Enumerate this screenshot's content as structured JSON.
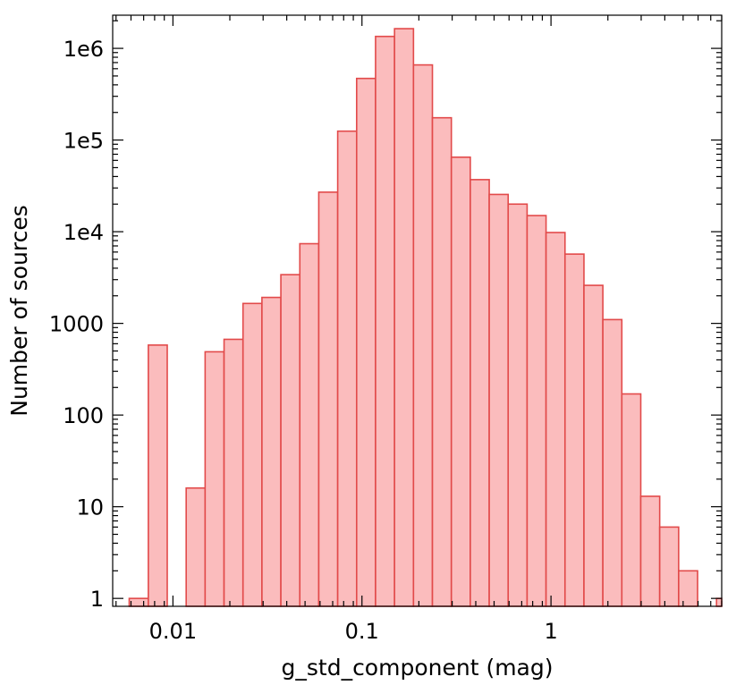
{
  "chart_data": {
    "type": "bar",
    "subtype": "histogram",
    "title": "",
    "xlabel": "g_std_component (mag)",
    "ylabel": "Number of sources",
    "x_scale": "log",
    "y_scale": "log",
    "xlim": [
      0.0048,
      8.0
    ],
    "ylim": [
      0.82,
      2300000
    ],
    "x_ticks": [
      {
        "value": 0.01,
        "label": "0.01"
      },
      {
        "value": 0.1,
        "label": "0.1"
      },
      {
        "value": 1,
        "label": "1"
      }
    ],
    "y_ticks": [
      {
        "value": 1,
        "label": "1"
      },
      {
        "value": 10,
        "label": "10"
      },
      {
        "value": 100,
        "label": "100"
      },
      {
        "value": 1000,
        "label": "1000"
      },
      {
        "value": 10000,
        "label": "1e4"
      },
      {
        "value": 100000,
        "label": "1e5"
      },
      {
        "value": 1000000,
        "label": "1e6"
      }
    ],
    "grid": false,
    "bar_fill": "#fbbcbd",
    "bar_stroke": "#e24a4a",
    "bins": [
      {
        "x0": 0.00587,
        "x1": 0.00741,
        "count": 1
      },
      {
        "x0": 0.00741,
        "x1": 0.00933,
        "count": 580
      },
      {
        "x0": 0.01175,
        "x1": 0.0148,
        "count": 16
      },
      {
        "x0": 0.0148,
        "x1": 0.01864,
        "count": 490
      },
      {
        "x0": 0.01864,
        "x1": 0.02348,
        "count": 670
      },
      {
        "x0": 0.02348,
        "x1": 0.02957,
        "count": 1650
      },
      {
        "x0": 0.02957,
        "x1": 0.03724,
        "count": 1920
      },
      {
        "x0": 0.03724,
        "x1": 0.04691,
        "count": 3400
      },
      {
        "x0": 0.04691,
        "x1": 0.05908,
        "count": 7400
      },
      {
        "x0": 0.05908,
        "x1": 0.07441,
        "count": 27000
      },
      {
        "x0": 0.07441,
        "x1": 0.09372,
        "count": 125000
      },
      {
        "x0": 0.09372,
        "x1": 0.118,
        "count": 470000
      },
      {
        "x0": 0.118,
        "x1": 0.1487,
        "count": 1350000
      },
      {
        "x0": 0.1487,
        "x1": 0.1873,
        "count": 1640000
      },
      {
        "x0": 0.1873,
        "x1": 0.2359,
        "count": 660000
      },
      {
        "x0": 0.2359,
        "x1": 0.2971,
        "count": 175000
      },
      {
        "x0": 0.2971,
        "x1": 0.3742,
        "count": 65000
      },
      {
        "x0": 0.3742,
        "x1": 0.4713,
        "count": 37000
      },
      {
        "x0": 0.4713,
        "x1": 0.5936,
        "count": 25500
      },
      {
        "x0": 0.5936,
        "x1": 0.7476,
        "count": 20000
      },
      {
        "x0": 0.7476,
        "x1": 0.9416,
        "count": 15000
      },
      {
        "x0": 0.9416,
        "x1": 1.186,
        "count": 9800
      },
      {
        "x0": 1.186,
        "x1": 1.494,
        "count": 5700
      },
      {
        "x0": 1.494,
        "x1": 1.881,
        "count": 2600
      },
      {
        "x0": 1.881,
        "x1": 2.37,
        "count": 1100
      },
      {
        "x0": 2.37,
        "x1": 2.985,
        "count": 170
      },
      {
        "x0": 2.985,
        "x1": 3.759,
        "count": 13
      },
      {
        "x0": 3.759,
        "x1": 4.735,
        "count": 6
      },
      {
        "x0": 4.735,
        "x1": 5.964,
        "count": 2
      },
      {
        "x0": 7.511,
        "x1": 9.46,
        "count": 1
      }
    ]
  }
}
